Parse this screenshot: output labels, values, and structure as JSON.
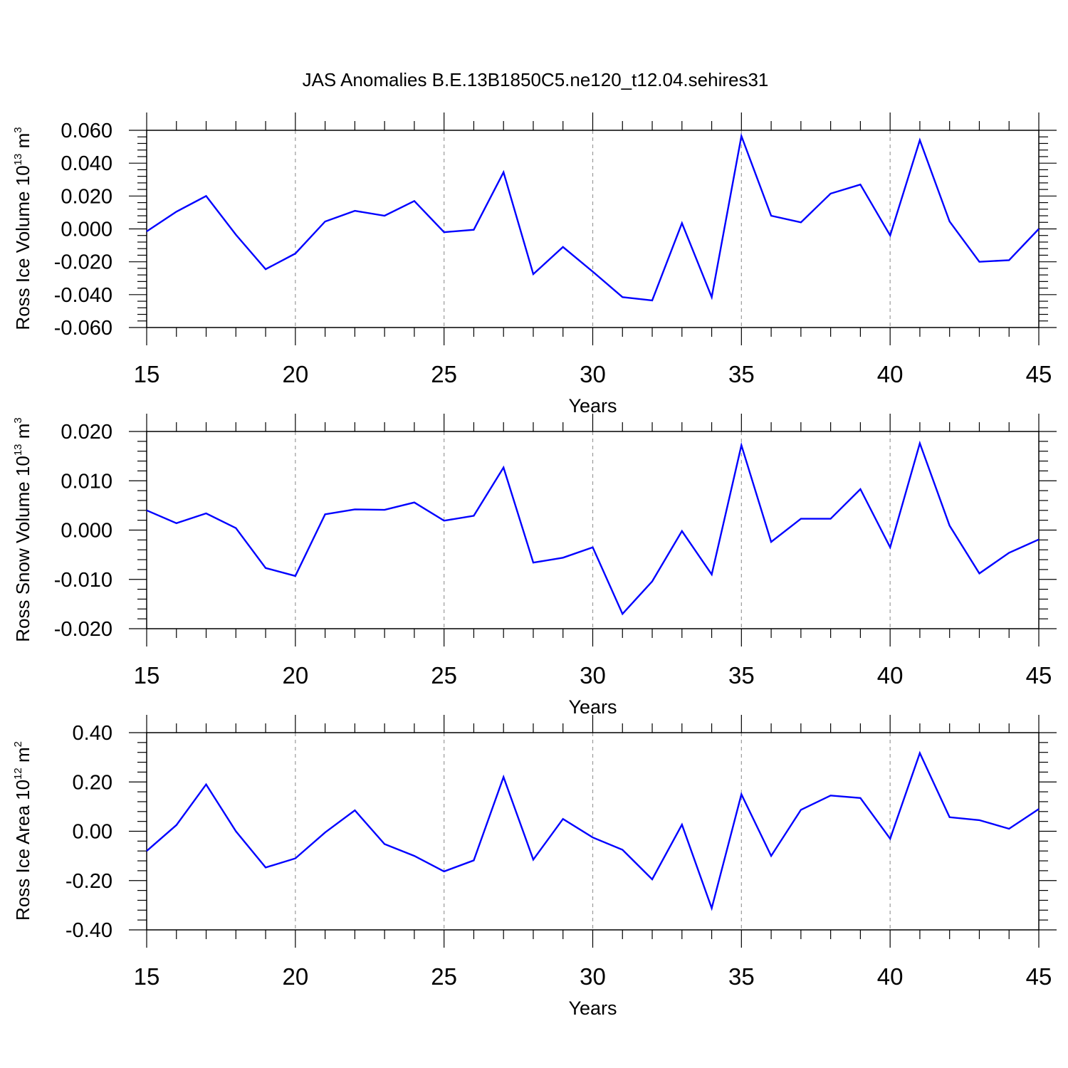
{
  "title": "JAS Anomalies B.E.13B1850C5.ne120_t12.04.sehires31",
  "chart_data": [
    {
      "type": "line",
      "ylabel": {
        "prefix": "Ross Ice Volume 10",
        "sup": "13",
        "mid": " m",
        "sup2": "3"
      },
      "xlabel": "Years",
      "xlim": [
        15,
        45
      ],
      "ylim": [
        -0.06,
        0.06
      ],
      "x_ticks": [
        "15",
        "20",
        "25",
        "30",
        "35",
        "40",
        "45"
      ],
      "y_ticks": [
        {
          "v": 0.06,
          "label": "0.060"
        },
        {
          "v": 0.04,
          "label": "0.040"
        },
        {
          "v": 0.02,
          "label": "0.020"
        },
        {
          "v": 0.0,
          "label": "0.000"
        },
        {
          "v": -0.02,
          "label": "-0.020"
        },
        {
          "v": -0.04,
          "label": "-0.040"
        },
        {
          "v": -0.06,
          "label": "-0.060"
        }
      ],
      "grid": "dashed vertical lines at major x ticks",
      "color": "#0000ff",
      "x": [
        15,
        16,
        17,
        18,
        19,
        20,
        21,
        22,
        23,
        24,
        25,
        26,
        27,
        28,
        29,
        30,
        31,
        32,
        33,
        34,
        35,
        36,
        37,
        38,
        39,
        40,
        41,
        42,
        43,
        44,
        45
      ],
      "values": [
        -0.0015,
        0.0105,
        0.02,
        -0.0035,
        -0.0245,
        -0.015,
        0.0045,
        0.011,
        0.008,
        0.017,
        -0.002,
        -0.0005,
        0.0345,
        -0.0275,
        -0.011,
        -0.026,
        -0.0415,
        -0.0435,
        0.0035,
        -0.0415,
        0.0565,
        0.008,
        0.004,
        0.0215,
        0.027,
        -0.004,
        0.054,
        0.0045,
        -0.02,
        -0.019,
        0.0
      ]
    },
    {
      "type": "line",
      "ylabel": {
        "prefix": "Ross Snow Volume 10",
        "sup": "13",
        "mid": " m",
        "sup2": "3"
      },
      "xlabel": "Years",
      "xlim": [
        15,
        45
      ],
      "ylim": [
        -0.02,
        0.02
      ],
      "x_ticks": [
        "15",
        "20",
        "25",
        "30",
        "35",
        "40",
        "45"
      ],
      "y_ticks": [
        {
          "v": 0.02,
          "label": "0.020"
        },
        {
          "v": 0.01,
          "label": "0.010"
        },
        {
          "v": 0.0,
          "label": "0.000"
        },
        {
          "v": -0.01,
          "label": "-0.010"
        },
        {
          "v": -0.02,
          "label": "-0.020"
        }
      ],
      "grid": "dashed vertical lines at major x ticks",
      "color": "#0000ff",
      "x": [
        15,
        16,
        17,
        18,
        19,
        20,
        21,
        22,
        23,
        24,
        25,
        26,
        27,
        28,
        29,
        30,
        31,
        32,
        33,
        34,
        35,
        36,
        37,
        38,
        39,
        40,
        41,
        42,
        43,
        44,
        45
      ],
      "values": [
        0.004,
        0.0014,
        0.0034,
        0.0004,
        -0.0077,
        -0.0093,
        0.0032,
        0.0042,
        0.0041,
        0.0056,
        0.0019,
        0.0029,
        0.0127,
        -0.0066,
        -0.0056,
        -0.0035,
        -0.017,
        -0.0104,
        -0.0002,
        -0.009,
        0.0172,
        -0.0024,
        0.0023,
        0.0023,
        0.0083,
        -0.0035,
        0.0176,
        0.0009,
        -0.0088,
        -0.0046,
        -0.0019
      ]
    },
    {
      "type": "line",
      "ylabel": {
        "prefix": "Ross Ice Area 10",
        "sup": "12",
        "mid": " m",
        "sup2": "2"
      },
      "xlabel": "Years",
      "xlim": [
        15,
        45
      ],
      "ylim": [
        -0.4,
        0.4
      ],
      "x_ticks": [
        "15",
        "20",
        "25",
        "30",
        "35",
        "40",
        "45"
      ],
      "y_ticks": [
        {
          "v": 0.4,
          "label": "0.40"
        },
        {
          "v": 0.2,
          "label": "0.20"
        },
        {
          "v": 0.0,
          "label": "0.00"
        },
        {
          "v": -0.2,
          "label": "-0.20"
        },
        {
          "v": -0.4,
          "label": "-0.40"
        }
      ],
      "grid": "dashed vertical lines at major x ticks",
      "color": "#0000ff",
      "x": [
        15,
        16,
        17,
        18,
        19,
        20,
        21,
        22,
        23,
        24,
        25,
        26,
        27,
        28,
        29,
        30,
        31,
        32,
        33,
        34,
        35,
        36,
        37,
        38,
        39,
        40,
        41,
        42,
        43,
        44,
        45
      ],
      "values": [
        -0.08,
        0.025,
        0.19,
        0.0,
        -0.147,
        -0.11,
        -0.005,
        0.085,
        -0.052,
        -0.1,
        -0.163,
        -0.118,
        0.22,
        -0.115,
        0.05,
        -0.025,
        -0.075,
        -0.195,
        0.027,
        -0.312,
        0.15,
        -0.1,
        0.087,
        0.145,
        0.135,
        -0.03,
        0.317,
        0.057,
        0.045,
        0.01,
        0.09
      ]
    }
  ]
}
